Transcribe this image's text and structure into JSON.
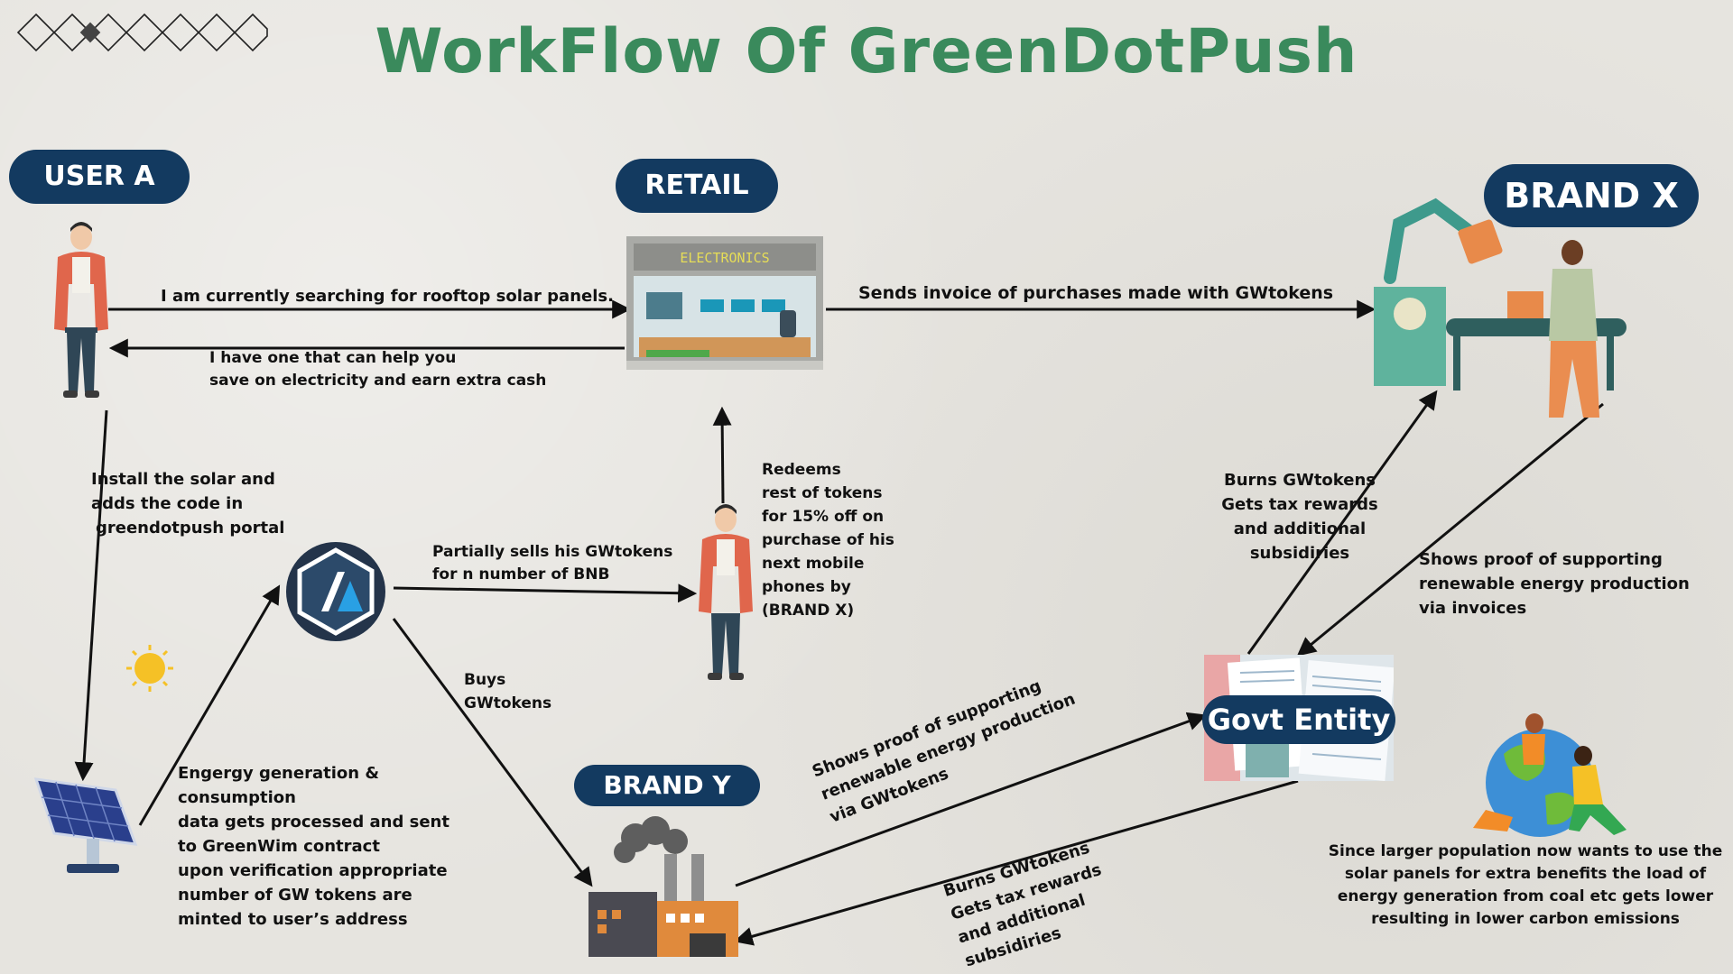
{
  "title": "WorkFlow Of GreenDotPush",
  "nodes": {
    "user_a": "USER A",
    "retail": "RETAIL",
    "brand_x": "BRAND X",
    "brand_y": "BRAND Y",
    "govt": "Govt Entity",
    "store_sign": "ELECTRONICS"
  },
  "edges": {
    "user_to_retail": "I am currently searching for rooftop solar panels.",
    "retail_to_user": [
      "I have one that can help you",
      "save on electricity and earn extra cash"
    ],
    "retail_to_brandx": "Sends invoice of purchases made with GWtokens",
    "user_to_solar": [
      "Install the solar and",
      "adds the code in",
      "greendotpush portal"
    ],
    "solar_to_contract": [
      "Engergy generation &",
      "consumption",
      "data gets processed and sent",
      "to GreenWim contract",
      "upon verification appropriate",
      "number of GW tokens are",
      "minted to user’s address"
    ],
    "contract_to_user": [
      "Partially sells his GWtokens",
      "for  n number of BNB"
    ],
    "redeem": [
      "Redeems",
      "rest of tokens",
      "for 15% off on",
      "purchase of his",
      "next mobile",
      "phones by",
      "(BRAND X)"
    ],
    "buys": [
      "Buys",
      "GWtokens"
    ],
    "govt_to_brandx": [
      "Burns GWtokens",
      "Gets tax rewards",
      "and additional",
      "subsidiries"
    ],
    "brandx_to_govt": [
      "Shows proof of supporting",
      "renewable energy production",
      "via invoices"
    ],
    "brandy_to_govt": [
      "Shows proof of supporting",
      "renewable energy production",
      "via GWtokens"
    ],
    "govt_to_brandy": [
      "Burns GWtokens",
      "Gets tax rewards",
      "and additional",
      "subsidiries"
    ],
    "conclusion": [
      "Since larger population now wants to use the",
      "solar panels for extra  benefits the load of",
      "energy generation from coal etc gets lower",
      "resulting in lower carbon emissions"
    ]
  }
}
